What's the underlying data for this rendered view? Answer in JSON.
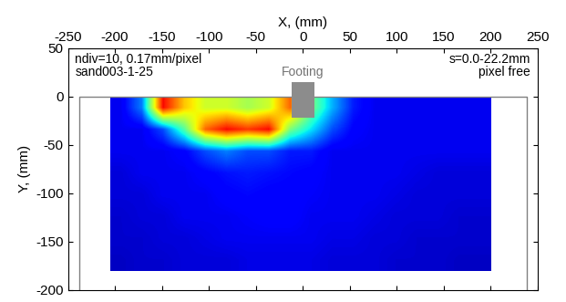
{
  "chart_data": {
    "type": "heatmap",
    "xlabel": "X, (mm)",
    "ylabel": "Y, (mm)",
    "xlim": [
      -250,
      250
    ],
    "ylim": [
      -200,
      50
    ],
    "xticks": [
      -250,
      -200,
      -150,
      -100,
      -50,
      0,
      50,
      100,
      150,
      200,
      250
    ],
    "yticks": [
      -200,
      -150,
      -100,
      -50,
      0,
      50
    ],
    "annotations": {
      "top_left": [
        "ndiv=10, 0.17mm/pixel",
        "sand003-1-25"
      ],
      "top_right": [
        "s=0.0-22.2mm",
        "pixel free"
      ]
    },
    "footing": {
      "label": "Footing",
      "x": [
        -12,
        12
      ],
      "y": [
        -22,
        15
      ]
    },
    "box": {
      "x": [
        -238,
        238
      ],
      "y": [
        -200,
        0
      ]
    },
    "field": {
      "x_extent": [
        -205,
        200
      ],
      "y_extent": [
        -180,
        0
      ],
      "color_range": [
        0,
        1
      ],
      "cells": [
        [
          0.1,
          0.25,
          0.9,
          0.7,
          0.6,
          0.6,
          0.55,
          0.6,
          0.8,
          0.5,
          0.3,
          0.15,
          0.1,
          0.1,
          0.1,
          0.1,
          0.1,
          0.1
        ],
        [
          0.1,
          0.1,
          0.2,
          0.45,
          0.8,
          0.9,
          0.85,
          0.9,
          0.5,
          0.35,
          0.2,
          0.12,
          0.1,
          0.1,
          0.1,
          0.1,
          0.1,
          0.1
        ],
        [
          0.1,
          0.1,
          0.1,
          0.12,
          0.2,
          0.25,
          0.2,
          0.2,
          0.15,
          0.15,
          0.1,
          0.1,
          0.1,
          0.1,
          0.1,
          0.1,
          0.1,
          0.1
        ],
        [
          0.08,
          0.1,
          0.1,
          0.1,
          0.12,
          0.14,
          0.15,
          0.14,
          0.13,
          0.12,
          0.1,
          0.1,
          0.1,
          0.1,
          0.09,
          0.08,
          0.08,
          0.08
        ],
        [
          0.08,
          0.08,
          0.1,
          0.1,
          0.1,
          0.12,
          0.13,
          0.12,
          0.12,
          0.11,
          0.1,
          0.1,
          0.1,
          0.09,
          0.08,
          0.08,
          0.08,
          0.08
        ],
        [
          0.07,
          0.08,
          0.08,
          0.1,
          0.1,
          0.1,
          0.11,
          0.12,
          0.12,
          0.1,
          0.1,
          0.1,
          0.09,
          0.08,
          0.08,
          0.08,
          0.07,
          0.07
        ],
        [
          0.07,
          0.07,
          0.08,
          0.08,
          0.09,
          0.1,
          0.1,
          0.1,
          0.1,
          0.1,
          0.09,
          0.09,
          0.08,
          0.08,
          0.07,
          0.07,
          0.07,
          0.07
        ],
        [
          0.06,
          0.07,
          0.07,
          0.08,
          0.08,
          0.08,
          0.09,
          0.09,
          0.09,
          0.09,
          0.08,
          0.08,
          0.08,
          0.07,
          0.07,
          0.07,
          0.06,
          0.06
        ]
      ]
    }
  }
}
